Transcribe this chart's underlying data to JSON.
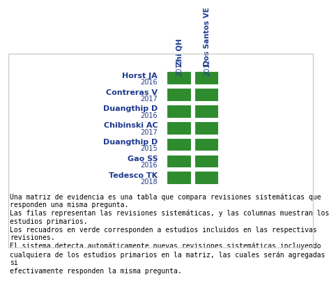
{
  "columns": [
    "Zhi QH\n2012",
    "Dos Santos VE\n2012"
  ],
  "rows": [
    {
      "name": "Horst JA",
      "year": "2016",
      "values": [
        1,
        1
      ]
    },
    {
      "name": "Contreras V",
      "year": "2017",
      "values": [
        1,
        1
      ]
    },
    {
      "name": "Duangthip D",
      "year": "2016",
      "values": [
        1,
        1
      ]
    },
    {
      "name": "Chibinski AC",
      "year": "2017",
      "values": [
        1,
        1
      ]
    },
    {
      "name": "Duangthip D",
      "year": "2015",
      "values": [
        1,
        1
      ]
    },
    {
      "name": "Gao SS",
      "year": "2016",
      "values": [
        1,
        1
      ]
    },
    {
      "name": "Tedesco TK",
      "year": "2018",
      "values": [
        1,
        1
      ]
    }
  ],
  "green_color": "#2E8B2E",
  "label_color": "#1F3A8F",
  "text_color": "#000000",
  "background_color": "#FFFFFF",
  "footer_text": "Una matriz de evidencia es una tabla que compara revisiones sistemáticas que\nresponden una misma pregunta.\nLas filas representan las revisiones sistemáticas, y las columnas muestran los\nestudios primarios.\nLos recuadros en verde corresponden a estudios incluidos en las respectivas\nrevisiones.\nEl sistema detecta automáticamente nuevas revisiones sistemáticas incluyendo\ncualquiera de los estudios primarios en la matriz, las cuales serán agregadas si\nefectivamente responden la misma pregunta.",
  "col_name_fontsize": 7.5,
  "row_name_fontsize": 8,
  "row_year_fontsize": 7,
  "footer_fontsize": 7
}
